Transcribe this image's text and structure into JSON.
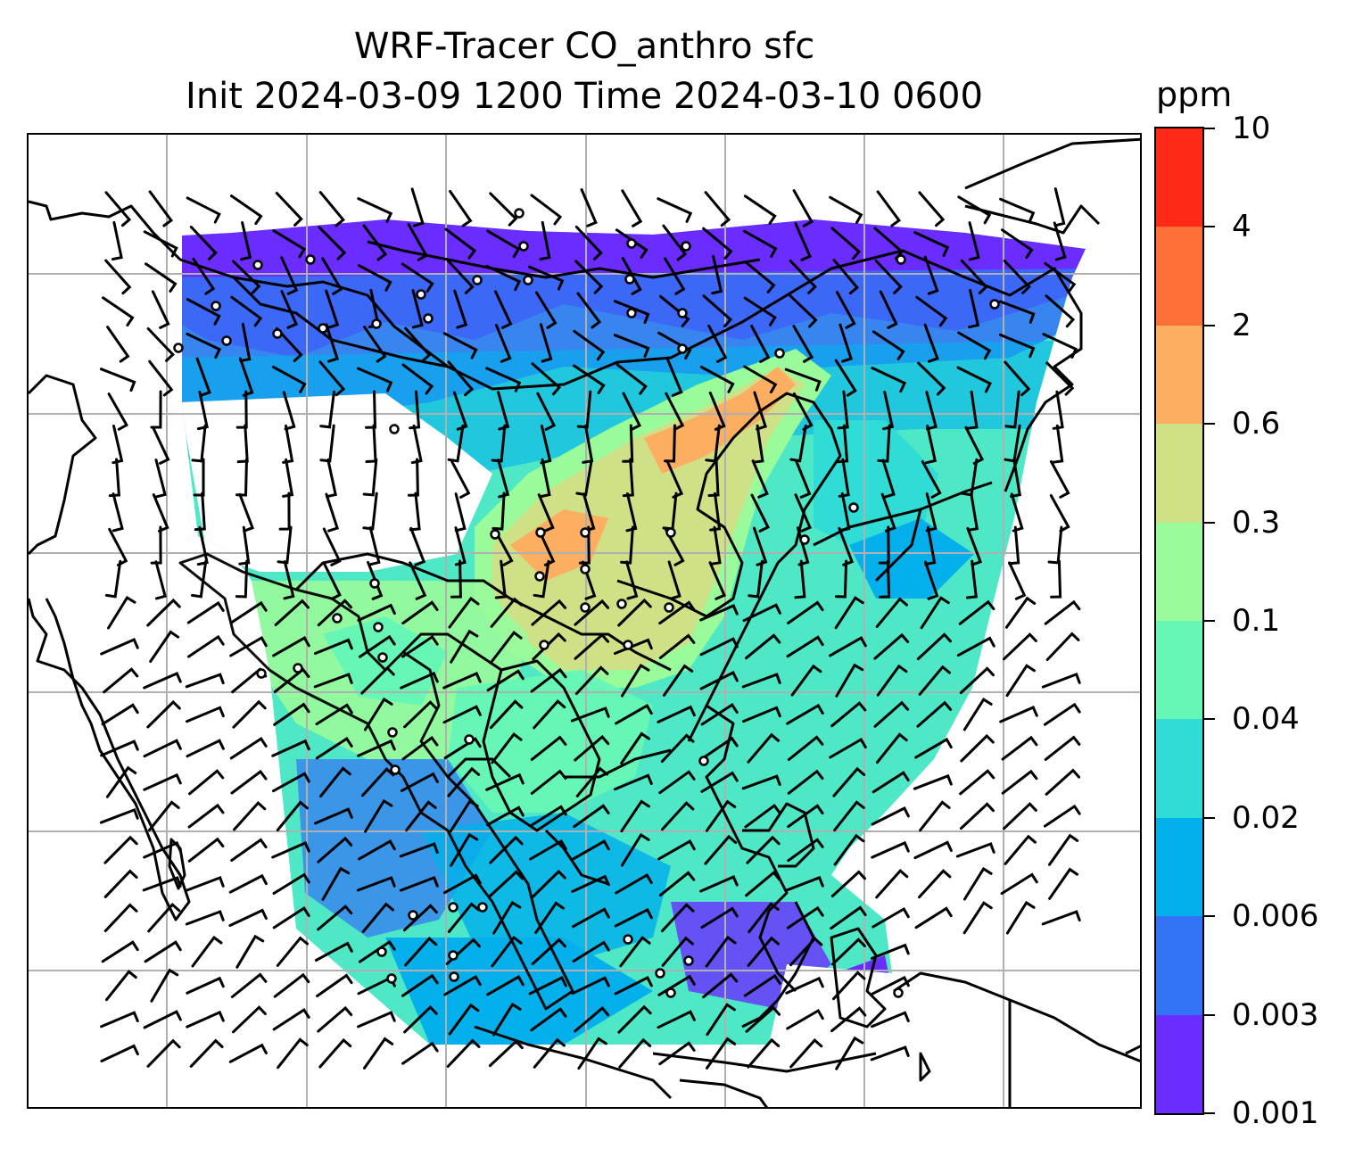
{
  "title": {
    "line1": "WRF-Tracer CO_anthro sfc",
    "line2": "Init 2024-03-09 1200 Time 2024-03-10 0600"
  },
  "colorbar": {
    "unit": "ppm",
    "levels": [
      "0.001",
      "0.003",
      "0.006",
      "0.02",
      "0.04",
      "0.1",
      "0.3",
      "0.6",
      "2",
      "4",
      "10"
    ],
    "colors": [
      "#6a2cff",
      "#3473f6",
      "#04b0eb",
      "#2fdcd6",
      "#66f7b6",
      "#9afb9a",
      "#cfe187",
      "#fdae60",
      "#ff7038",
      "#ff2915"
    ]
  },
  "map": {
    "projection": "regional lat-lon",
    "field": "CO_anthro surface concentration",
    "overlays": [
      "coastlines",
      "country borders",
      "lat-lon gridlines",
      "wind barbs",
      "calm-wind circles"
    ],
    "gridline_color": "#b0b0b0",
    "coastline_color": "#000000"
  }
}
